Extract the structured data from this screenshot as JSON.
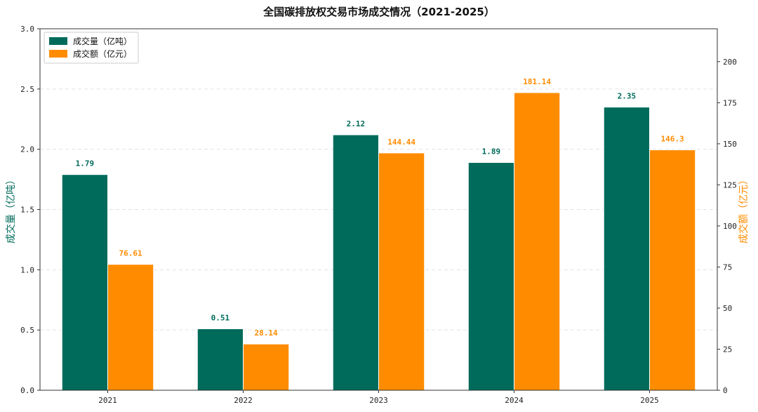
{
  "chart_data": {
    "type": "bar",
    "title": "全国碳排放权交易市场成交情况（2021-2025）",
    "categories": [
      "2021",
      "2022",
      "2023",
      "2024",
      "2025"
    ],
    "series": [
      {
        "name": "成交量（亿吨）",
        "axis": "left",
        "color": "#006b5b",
        "values": [
          1.79,
          0.51,
          2.12,
          1.89,
          2.35
        ],
        "labels": [
          "1.79",
          "0.51",
          "2.12",
          "1.89",
          "2.35"
        ]
      },
      {
        "name": "成交额（亿元）",
        "axis": "right",
        "color": "#ff8c00",
        "values": [
          76.61,
          28.14,
          144.44,
          181.14,
          146.3
        ],
        "labels": [
          "76.61",
          "28.14",
          "144.44",
          "181.14",
          "146.3"
        ]
      }
    ],
    "ylabel": "成交量（亿吨）",
    "y2label": "成交额（亿元）",
    "ylim": [
      0,
      3.0
    ],
    "y2lim": [
      0,
      220
    ],
    "yticks": [
      "0.0",
      "0.5",
      "1.0",
      "1.5",
      "2.0",
      "2.5",
      "3.0"
    ],
    "y2ticks": [
      "0",
      "25",
      "50",
      "75",
      "100",
      "125",
      "150",
      "175",
      "200"
    ],
    "grid": true,
    "legend_position": "top-left"
  }
}
